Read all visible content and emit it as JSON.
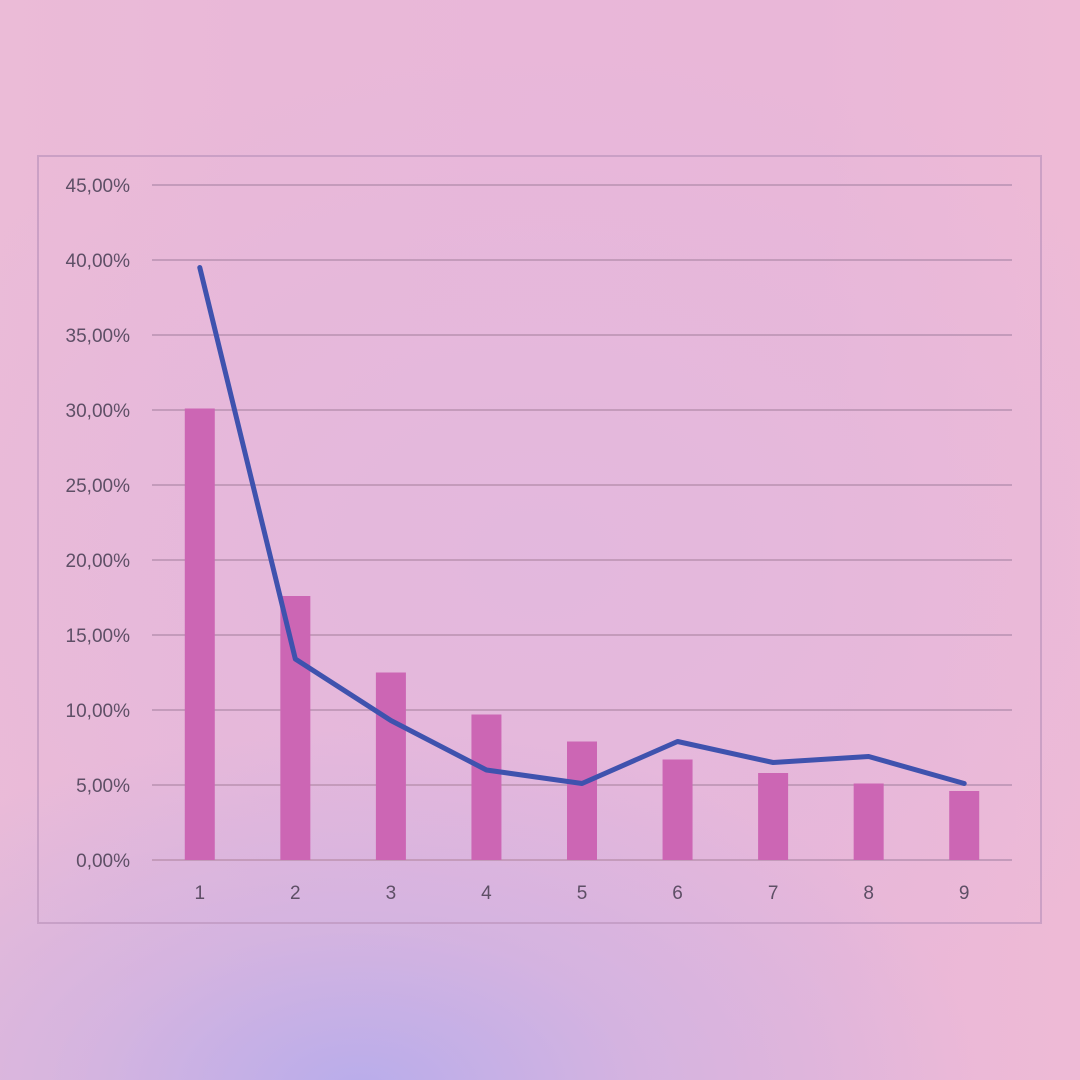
{
  "chart_data": {
    "type": "bar",
    "categories": [
      "1",
      "2",
      "3",
      "4",
      "5",
      "6",
      "7",
      "8",
      "9"
    ],
    "series": [
      {
        "type": "bar",
        "values": [
          30.1,
          17.6,
          12.5,
          9.7,
          7.9,
          6.7,
          5.8,
          5.1,
          4.6
        ],
        "color": "#cc66b4"
      },
      {
        "type": "line",
        "values": [
          39.5,
          13.4,
          9.3,
          6.0,
          5.1,
          7.9,
          6.5,
          6.9,
          5.1
        ],
        "color": "#3f52ae"
      }
    ],
    "ylim": [
      0,
      45
    ],
    "yticks": [
      "0,00%",
      "5,00%",
      "10,00%",
      "15,00%",
      "20,00%",
      "25,00%",
      "30,00%",
      "35,00%",
      "40,00%",
      "45,00%"
    ],
    "grid": true,
    "title": "",
    "xlabel": "",
    "ylabel": ""
  },
  "colors": {
    "gridline": "#c49bbb",
    "axis_label": "#5e4f66",
    "frame": "#c096be"
  }
}
